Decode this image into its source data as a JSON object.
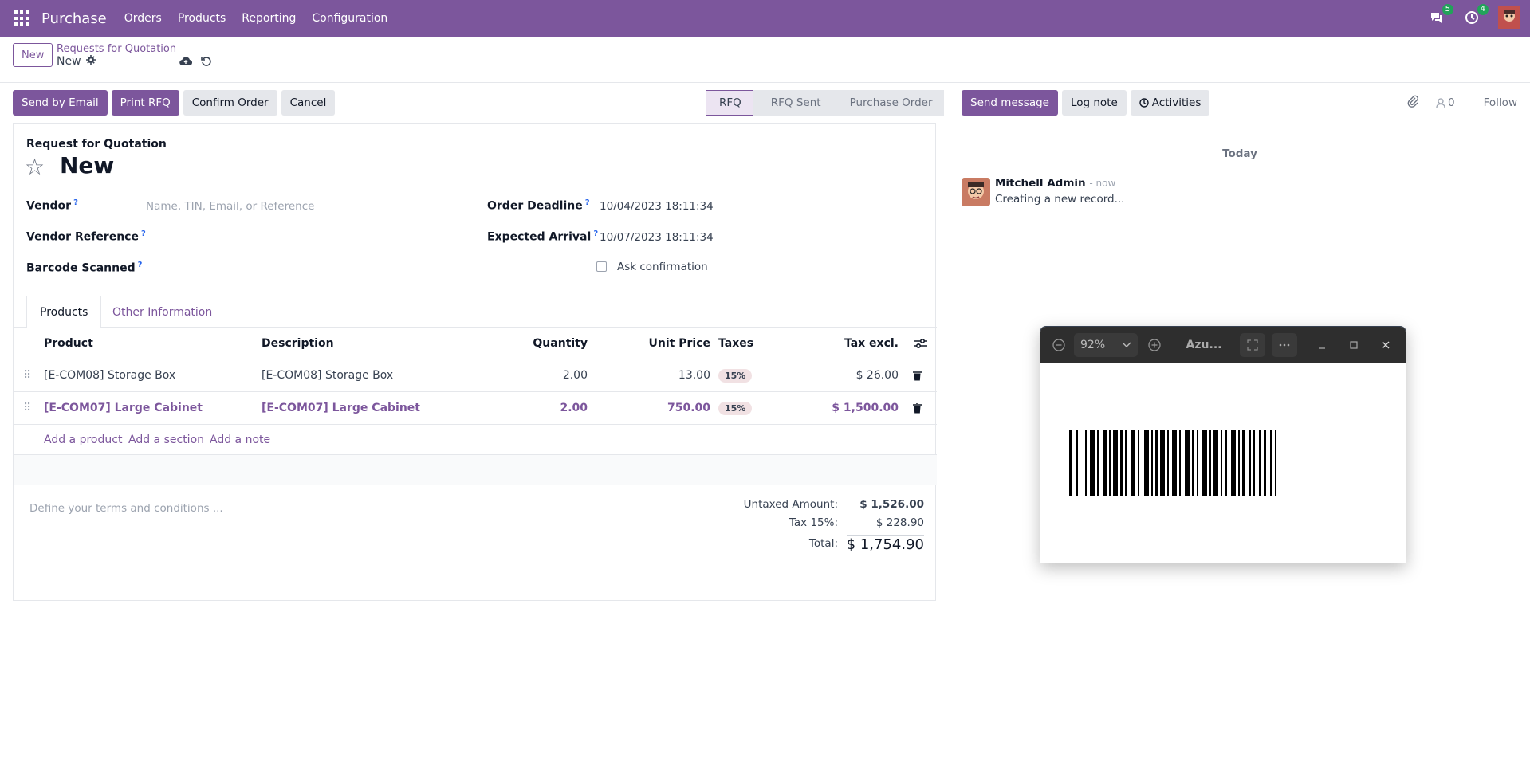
{
  "topbar": {
    "app_name": "Purchase",
    "menu": [
      "Orders",
      "Products",
      "Reporting",
      "Configuration"
    ],
    "messages_count": "5",
    "activities_count": "4"
  },
  "control": {
    "new_label": "New",
    "breadcrumb": "Requests for Quotation",
    "current": "New"
  },
  "actions": {
    "send_email": "Send by Email",
    "print_rfq": "Print RFQ",
    "confirm": "Confirm Order",
    "cancel": "Cancel"
  },
  "status": [
    "RFQ",
    "RFQ Sent",
    "Purchase Order"
  ],
  "form": {
    "label": "Request for Quotation",
    "title": "New",
    "vendor_label": "Vendor",
    "vendor_placeholder": "Name, TIN, Email, or Reference",
    "vendor_ref_label": "Vendor Reference",
    "barcode_label": "Barcode Scanned",
    "order_deadline_label": "Order Deadline",
    "order_deadline": "10/04/2023 18:11:34",
    "expected_arrival_label": "Expected Arrival",
    "expected_arrival": "10/07/2023 18:11:34",
    "ask_confirmation": "Ask confirmation",
    "help_mark": "?"
  },
  "tabs": [
    "Products",
    "Other Information"
  ],
  "table": {
    "headers": {
      "product": "Product",
      "description": "Description",
      "quantity": "Quantity",
      "unit_price": "Unit Price",
      "taxes": "Taxes",
      "tax_excl": "Tax excl."
    },
    "rows": [
      {
        "product": "[E-COM08] Storage Box",
        "description": "[E-COM08] Storage Box",
        "quantity": "2.00",
        "unit_price": "13.00",
        "tax": "15%",
        "subtotal": "$ 26.00"
      },
      {
        "product": "[E-COM07] Large Cabinet",
        "description": "[E-COM07] Large Cabinet",
        "quantity": "2.00",
        "unit_price": "750.00",
        "tax": "15%",
        "subtotal": "$ 1,500.00"
      }
    ],
    "add_product": "Add a product",
    "add_section": "Add a section",
    "add_note": "Add a note"
  },
  "footer": {
    "terms_placeholder": "Define your terms and conditions ...",
    "untaxed_label": "Untaxed Amount:",
    "untaxed_value": "$ 1,526.00",
    "tax_label": "Tax 15%:",
    "tax_value": "$ 228.90",
    "total_label": "Total:",
    "total_value": "$ 1,754.90"
  },
  "chatter": {
    "send_message": "Send message",
    "log_note": "Log note",
    "activities": "Activities",
    "followers_count": "0",
    "follow": "Follow",
    "today": "Today",
    "author": "Mitchell Admin",
    "time": "- now",
    "body": "Creating a new record..."
  },
  "viewer": {
    "zoom": "92%",
    "title": "Azu..."
  },
  "colors": {
    "brand": "#7c569c",
    "badge_green": "#22a35a"
  }
}
